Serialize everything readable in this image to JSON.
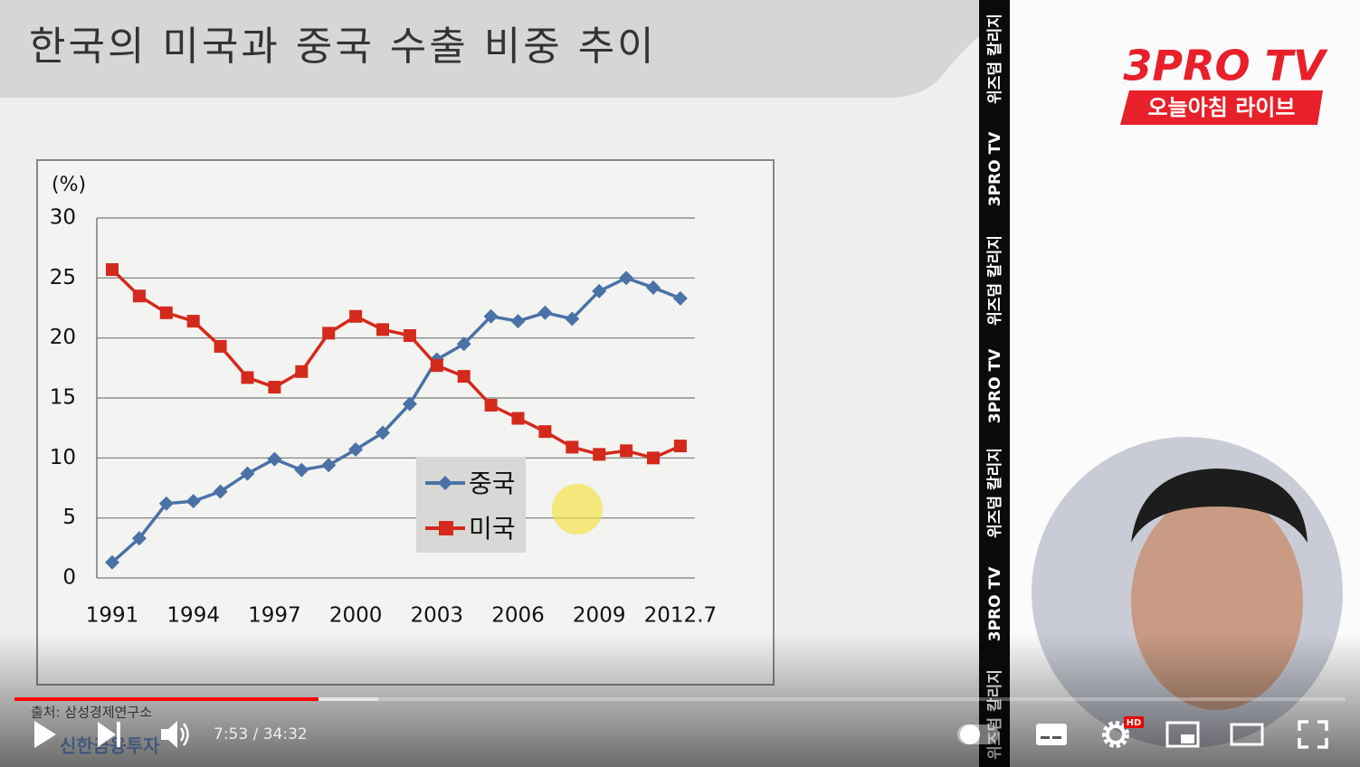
{
  "slide_title": "한국의 미국과 중국 수출 비중 추이",
  "source": "출처: 삼성경제연구소",
  "logo": "신한금융투자",
  "channel": {
    "name": "3PRO TV",
    "show": "오늘아침 라이브"
  },
  "side_banner": [
    "위즈덤 칼리지",
    "3PRO TV",
    "위즈덤 칼리지",
    "3PRO TV",
    "위즈덤 칼리지",
    "3PRO TV",
    "위즈덤 칼리지"
  ],
  "player": {
    "time": "7:53 / 34:32",
    "quality_badge": "HD"
  },
  "chart_data": {
    "type": "line",
    "y_label": "(%)",
    "categories": [
      "1991",
      null,
      null,
      "1994",
      null,
      null,
      "1997",
      null,
      null,
      "2000",
      null,
      null,
      "2003",
      null,
      null,
      "2006",
      null,
      null,
      "2009",
      null,
      null,
      "2012.7"
    ],
    "series": [
      {
        "name": "중국",
        "color": "#4a72a6",
        "marker": "diamond",
        "values": [
          1.3,
          3.3,
          6.2,
          6.4,
          7.2,
          8.7,
          9.9,
          9.0,
          9.4,
          10.7,
          12.1,
          14.5,
          18.2,
          19.5,
          21.8,
          21.4,
          22.1,
          21.6,
          23.9,
          25.0,
          24.2,
          23.3
        ]
      },
      {
        "name": "미국",
        "color": "#d42a1c",
        "marker": "square",
        "values": [
          25.7,
          23.5,
          22.1,
          21.4,
          19.3,
          16.7,
          15.9,
          17.2,
          20.4,
          21.8,
          20.7,
          20.2,
          17.7,
          16.8,
          14.4,
          13.3,
          12.2,
          10.9,
          10.3,
          10.6,
          10.0,
          11.0
        ]
      }
    ],
    "ylim": [
      0,
      30
    ],
    "yticks": [
      0,
      5,
      10,
      15,
      20,
      25,
      30
    ],
    "grid": true
  }
}
